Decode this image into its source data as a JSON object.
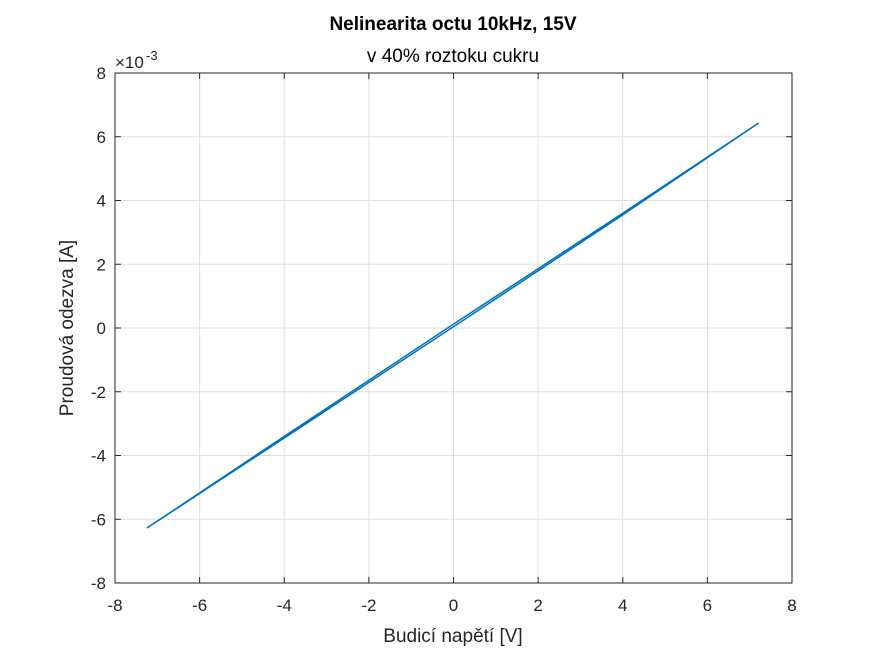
{
  "chart_data": {
    "type": "line",
    "title": "Nelinearita octu 10kHz, 15V",
    "subtitle": "v 40% roztoku cukru",
    "xlabel": "Budicí napětí [V]",
    "ylabel": "Proudová odezva [A]",
    "xlim": [
      -8,
      8
    ],
    "ylim": [
      -8,
      8
    ],
    "y_exponent_base": "×10",
    "y_exponent_power": "-3",
    "xticks": [
      "-8",
      "-6",
      "-4",
      "-2",
      "0",
      "2",
      "4",
      "6",
      "8"
    ],
    "yticks": [
      "-8",
      "-6",
      "-4",
      "-2",
      "0",
      "2",
      "4",
      "6",
      "8"
    ],
    "grid": true,
    "series_color": "#0072bd",
    "series": [
      {
        "x": [
          -7.25,
          -4.0,
          0.0,
          4.0,
          7.2,
          4.0,
          0.0,
          -4.0,
          -7.25
        ],
        "y": [
          -6.28,
          -3.45,
          0.04,
          3.55,
          6.42,
          3.6,
          0.12,
          -3.4,
          -6.28
        ]
      }
    ]
  }
}
